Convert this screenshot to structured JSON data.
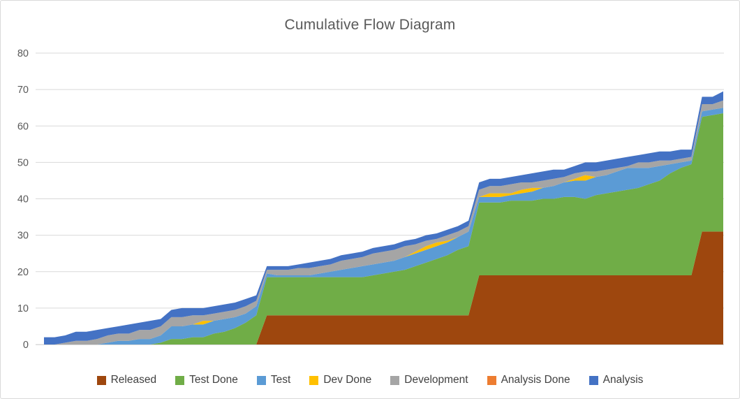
{
  "frame": {
    "background": "#FFFFFF",
    "border_color": "#D9D9D9"
  },
  "chart_data": {
    "type": "area",
    "stacked": true,
    "title": "Cumulative Flow Diagram",
    "title_color": "#595959",
    "xlabel": "",
    "ylabel": "",
    "ylim": [
      0,
      80
    ],
    "y_ticks": [
      0,
      10,
      20,
      30,
      40,
      50,
      60,
      70,
      80
    ],
    "x_count": 65,
    "x_axis_labels_visible": false,
    "grid": true,
    "gridline_color": "#D9D9D9",
    "axis_label_color": "#595959",
    "legend_position": "bottom",
    "series": [
      {
        "name": "Released",
        "color": "#9E470E",
        "values": [
          0,
          0,
          0,
          0,
          0,
          0,
          0,
          0,
          0,
          0,
          0,
          0,
          0,
          0,
          0,
          0,
          0,
          0,
          0,
          0,
          0,
          8,
          8,
          8,
          8,
          8,
          8,
          8,
          8,
          8,
          8,
          8,
          8,
          8,
          8,
          8,
          8,
          8,
          8,
          8,
          8,
          19,
          19,
          19,
          19,
          19,
          19,
          19,
          19,
          19,
          19,
          19,
          19,
          19,
          19,
          19,
          19,
          19,
          19,
          19,
          19,
          19,
          31,
          31,
          31
        ]
      },
      {
        "name": "Test Done",
        "color": "#70AD47",
        "values": [
          0,
          0,
          0,
          0,
          0,
          0,
          0,
          0,
          0,
          0,
          0,
          0.5,
          1.5,
          1.5,
          2,
          2,
          3,
          3.5,
          4.5,
          6,
          8,
          10.5,
          10.5,
          10.5,
          10.5,
          10.5,
          10.5,
          10.5,
          10.5,
          10.5,
          10.5,
          11,
          11.5,
          12,
          12.5,
          13.5,
          14.5,
          15.5,
          16.5,
          18,
          19,
          20,
          20,
          20,
          20.5,
          20.5,
          20.5,
          21,
          21,
          21.5,
          21.5,
          21,
          22,
          22.5,
          23,
          23.5,
          24,
          25,
          26,
          28,
          29.5,
          30.5,
          31.5,
          32,
          32.5
        ]
      },
      {
        "name": "Test",
        "color": "#5B9BD5",
        "values": [
          0,
          0,
          0,
          0,
          0,
          0,
          0.5,
          1,
          1,
          1.5,
          1.5,
          2,
          3.5,
          3.5,
          3.5,
          3.5,
          3.5,
          3.5,
          3,
          2.5,
          2.5,
          1,
          0.5,
          0.5,
          0.5,
          0.5,
          1,
          1.5,
          2,
          2.5,
          3,
          3,
          3,
          3,
          3.5,
          3.5,
          3.5,
          3.5,
          3.5,
          3.5,
          4,
          1.5,
          1.5,
          1.5,
          1.5,
          2,
          2.5,
          3,
          3.5,
          4,
          4.5,
          5,
          5,
          5,
          5.5,
          6,
          5.5,
          4.5,
          4,
          2.5,
          1.5,
          1,
          1.5,
          1.5,
          1.5
        ]
      },
      {
        "name": "Dev Done",
        "color": "#FFC000",
        "values": [
          0,
          0,
          0,
          0,
          0,
          0,
          0,
          0,
          0,
          0,
          0,
          0,
          0,
          0,
          0,
          1,
          0,
          0,
          0,
          0,
          0,
          0,
          0,
          0,
          0,
          0,
          0,
          0,
          0,
          0,
          0,
          0,
          0,
          0,
          0,
          0.5,
          1,
          1,
          0.5,
          0,
          0,
          0,
          1,
          1,
          0.5,
          1,
          1,
          0,
          0,
          0,
          0.5,
          1.5,
          0,
          0,
          0,
          0,
          0,
          0,
          0,
          0,
          0,
          0,
          0,
          0,
          0
        ]
      },
      {
        "name": "Development",
        "color": "#A5A5A5",
        "values": [
          0,
          0,
          0.5,
          1,
          1,
          1.5,
          2,
          2,
          2,
          2.5,
          2.5,
          2.5,
          2.5,
          2.5,
          2.5,
          1.5,
          2,
          2,
          2,
          2,
          1.5,
          1,
          1.5,
          1.5,
          2,
          2,
          2,
          2,
          2.5,
          2.5,
          2.5,
          3,
          3,
          3,
          3,
          2,
          1.5,
          1,
          1.5,
          1.5,
          1.5,
          2,
          2,
          2,
          2.5,
          2,
          1.5,
          2,
          2,
          1.5,
          1.5,
          1,
          1.5,
          1.5,
          1,
          0.5,
          1.5,
          1.5,
          1.5,
          1,
          1,
          1,
          2,
          1.5,
          2
        ]
      },
      {
        "name": "Analysis Done",
        "color": "#ED7D31",
        "values": [
          0,
          0,
          0,
          0,
          0,
          0,
          0,
          0,
          0,
          0,
          0,
          0,
          0,
          0,
          0,
          0,
          0,
          0,
          0,
          0,
          0,
          0,
          0,
          0,
          0,
          0,
          0,
          0,
          0,
          0,
          0,
          0,
          0,
          0,
          0,
          0,
          0,
          0,
          0,
          0,
          0,
          0,
          0,
          0,
          0,
          0,
          0,
          0,
          0,
          0,
          0,
          0,
          0,
          0,
          0,
          0,
          0,
          0,
          0,
          0,
          0,
          0,
          0,
          0,
          0
        ]
      },
      {
        "name": "Analysis",
        "color": "#4472C4",
        "values": [
          2,
          2,
          2,
          2.5,
          2.5,
          2.5,
          2,
          2,
          2.5,
          2,
          2.5,
          2,
          2,
          2.5,
          2,
          2,
          2,
          2,
          2,
          2,
          1.5,
          1,
          1,
          1,
          1,
          1.5,
          1.5,
          1.5,
          1.5,
          1.5,
          1.5,
          1.5,
          1.5,
          1.5,
          1.5,
          1.5,
          1.5,
          1.5,
          1.5,
          1.5,
          1.5,
          2,
          2,
          2,
          2,
          2,
          2.5,
          2.5,
          2.5,
          2,
          2,
          2.5,
          2.5,
          2.5,
          2.5,
          2.5,
          2,
          2.5,
          2.5,
          2.5,
          2.5,
          2,
          2,
          2,
          2.5
        ]
      }
    ]
  },
  "legend": {
    "items": [
      {
        "label": "Released"
      },
      {
        "label": "Test Done"
      },
      {
        "label": "Test"
      },
      {
        "label": "Dev Done"
      },
      {
        "label": "Development"
      },
      {
        "label": "Analysis Done"
      },
      {
        "label": "Analysis"
      }
    ]
  }
}
